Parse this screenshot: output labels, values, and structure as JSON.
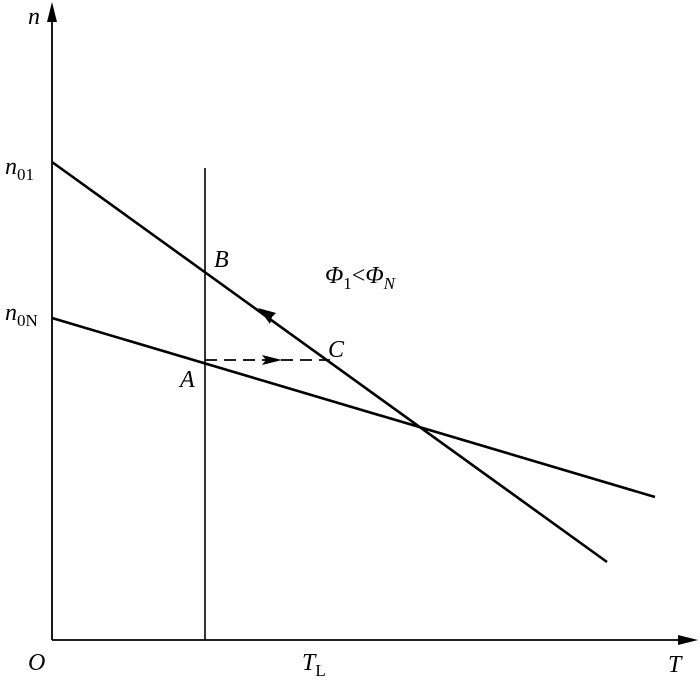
{
  "axes": {
    "y_label": "n",
    "x_label": "T",
    "origin": "O"
  },
  "speed_labels": [
    {
      "base": "n",
      "sub": "01"
    },
    {
      "base": "n",
      "sub": "0N"
    }
  ],
  "torque_label": {
    "base": "T",
    "sub": "L"
  },
  "points": {
    "A": "A",
    "B": "B",
    "C": "C"
  },
  "condition": {
    "left": "Φ",
    "left_sub": "1",
    "relation": "<",
    "right": "Φ",
    "right_sub": "N"
  }
}
